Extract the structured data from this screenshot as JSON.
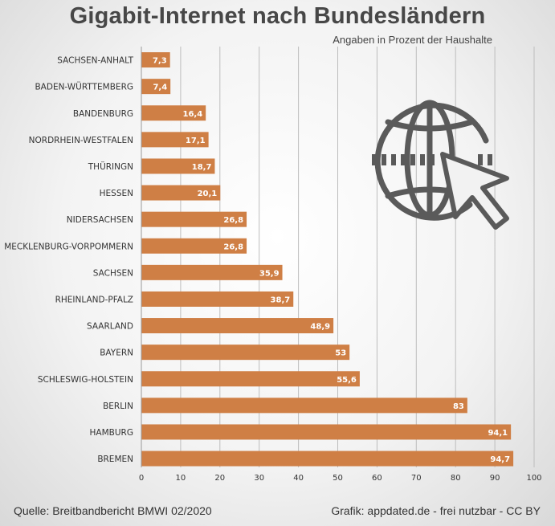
{
  "chart_data": {
    "type": "bar",
    "orientation": "horizontal",
    "title": "Gigabit-Internet nach Bundesländern",
    "subtitle": "Angaben in Prozent der Haushalte",
    "categories": [
      "SACHSEN-ANHALT",
      "BADEN-WÜRTTEMBERG",
      "BANDENBURG",
      "NORDRHEIN-WESTFALEN",
      "THÜRINGN",
      "HESSEN",
      "NIDERSACHSEN",
      "MECKLENBURG-VORPOMMERN",
      "SACHSEN",
      "RHEINLAND-PFALZ",
      "SAARLAND",
      "BAYERN",
      "SCHLESWIG-HOLSTEIN",
      "BERLIN",
      "HAMBURG",
      "BREMEN"
    ],
    "values": [
      7.3,
      7.4,
      16.4,
      17.1,
      18.7,
      20.1,
      26.8,
      26.8,
      35.9,
      38.7,
      48.9,
      53,
      55.6,
      83,
      94.1,
      94.7
    ],
    "value_labels": [
      "7,3",
      "7,4",
      "16,4",
      "17,1",
      "18,7",
      "20,1",
      "26,8",
      "26,8",
      "35,9",
      "38,7",
      "48,9",
      "53",
      "55,6",
      "83",
      "94,1",
      "94,7"
    ],
    "xlim": [
      0,
      100
    ],
    "xticks": [
      0,
      10,
      20,
      30,
      40,
      50,
      60,
      70,
      80,
      90,
      100
    ],
    "grid": true,
    "bar_color": "#cf7f45",
    "grid_color": "#bdbdbd"
  },
  "footer": {
    "source": "Quelle: Breitbandbericht BMWI 02/2020",
    "credit": "Grafik: appdated.de - frei nutzbar - CC BY"
  },
  "icon": {
    "name": "globe-cursor-icon",
    "color": "#5a5a5a"
  }
}
